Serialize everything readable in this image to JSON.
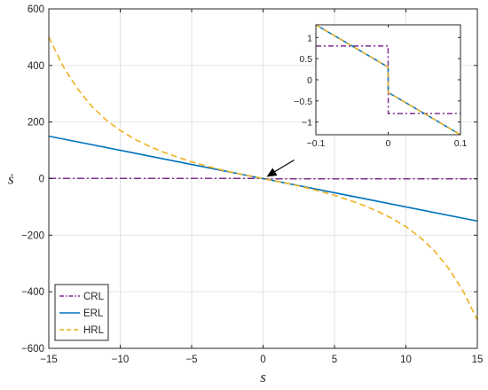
{
  "chart_data": [
    {
      "type": "line",
      "xlabel": "s",
      "ylabel": "ṡ",
      "xlim": [
        -15,
        15
      ],
      "ylim": [
        -600,
        600
      ],
      "xticks": [
        -15,
        -10,
        -5,
        0,
        5,
        10,
        15
      ],
      "yticks": [
        -600,
        -400,
        -200,
        0,
        200,
        400,
        600
      ],
      "grid": true,
      "legend_position": "bottom-left",
      "series": [
        {
          "name": "CRL",
          "color": "#7E2F8E",
          "style": "dash-dot",
          "x": [
            -15,
            -0.0001,
            0.0001,
            15
          ],
          "y": [
            0.8,
            0.8,
            -0.8,
            -0.8
          ]
        },
        {
          "name": "ERL",
          "color": "#0072BD",
          "style": "solid",
          "x": [
            -15,
            -10,
            -5,
            0,
            5,
            10,
            15
          ],
          "y": [
            150,
            100,
            50,
            0,
            -50,
            -100,
            -150
          ]
        },
        {
          "name": "HRL",
          "color": "#EDB120",
          "style": "dashed",
          "x": [
            -15,
            -14,
            -13,
            -12,
            -11,
            -10,
            -9,
            -8,
            -7,
            -6,
            -5,
            -4,
            -3,
            -2,
            -1,
            0,
            1,
            2,
            3,
            4,
            5,
            6,
            7,
            8,
            9,
            10,
            11,
            12,
            13,
            14,
            15
          ],
          "y": [
            500,
            397,
            318,
            256,
            208,
            170,
            140,
            115,
            94,
            76,
            59,
            45,
            32,
            20,
            10,
            0,
            -10,
            -20,
            -32,
            -45,
            -59,
            -76,
            -94,
            -115,
            -140,
            -170,
            -208,
            -256,
            -318,
            -397,
            -500
          ]
        }
      ],
      "annotation": {
        "type": "arrow",
        "from_data": [
          1.6,
          19
        ],
        "to_data": [
          0,
          0
        ]
      }
    },
    {
      "type": "line",
      "role": "inset",
      "xlim": [
        -0.1,
        0.1
      ],
      "ylim": [
        -1.3,
        1.3
      ],
      "xticks": [
        -0.1,
        0,
        0.1
      ],
      "yticks": [
        -1,
        -0.5,
        0,
        0.5,
        1
      ],
      "grid": false,
      "series": [
        {
          "name": "CRL",
          "color": "#7E2F8E",
          "style": "dash-dot",
          "x": [
            -0.1,
            -0.0001,
            0.0001,
            0.1
          ],
          "y": [
            0.8,
            0.8,
            -0.8,
            -0.8
          ]
        },
        {
          "name": "ERL",
          "color": "#0072BD",
          "style": "solid",
          "x": [
            -0.1,
            -0.0001,
            0.0001,
            0.1
          ],
          "y": [
            1.3,
            0.3,
            -0.3,
            -1.3
          ]
        },
        {
          "name": "HRL",
          "color": "#EDB120",
          "style": "dashed",
          "x": [
            -0.1,
            -0.0001,
            0.0001,
            0.1
          ],
          "y": [
            1.3,
            0.3,
            -0.3,
            -1.3
          ]
        }
      ]
    }
  ]
}
